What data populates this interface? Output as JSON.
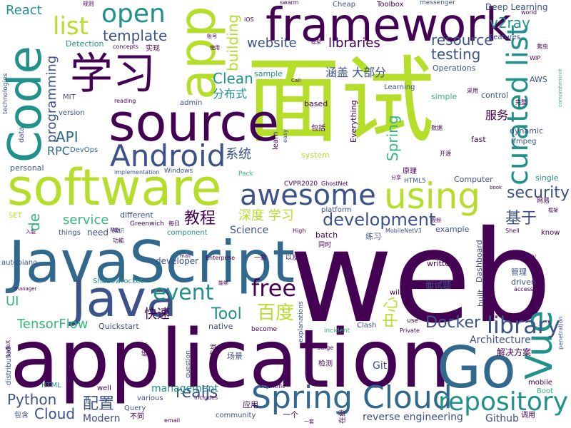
{
  "palette": {
    "dark_purple": "#440154",
    "indigo": "#3b528b",
    "blue": "#31688e",
    "teal": "#21918c",
    "green": "#35b779",
    "light_green": "#5ec962",
    "lime": "#b5de2b",
    "yellow": "#fde725"
  },
  "words": [
    "web",
    "application",
    "JavaScript",
    "面试",
    "software",
    "framework",
    "Java",
    "source",
    "Code",
    "app",
    "Go",
    "Spring Cloud",
    "学习",
    "awesome",
    "using",
    "Android",
    "repository",
    "curated list",
    "Vue",
    "open",
    "list",
    "free",
    "event",
    "library",
    "development",
    "百度",
    "security",
    "testing",
    "resource",
    "template",
    "website",
    "libraries",
    "React",
    "v2ray",
    "基于",
    "教程",
    "Docker",
    "Tool",
    "service",
    "realjs",
    "Python",
    "Cloud",
    "配置",
    "Clean",
    "building",
    "programming",
    "API",
    "RPC",
    "系统",
    "分布式",
    "Spring",
    "中心",
    "深度 学习",
    "服务",
    "快速",
    "TensorFlow",
    "UI",
    "management",
    "Modern",
    "Github",
    "reverse engineering",
    "解决方案",
    "Architecture",
    "Git",
    "Science",
    "涵盖 大部分",
    "Deep Learning",
    "Toolbox",
    "Cheap",
    "messenger",
    "Features",
    "AWS",
    "Operations",
    "Detection",
    "DevOps",
    "personal",
    "data",
    "MIT",
    "version",
    "admin",
    "sample",
    "Learning",
    "control",
    "simple",
    "dynamic",
    "fast",
    "ffmpeg",
    "Computer",
    "single",
    "CVPR2020",
    "GhostNet",
    "Pack",
    "HTML5",
    "原理",
    "system",
    "based",
    "包括",
    "Everything",
    "easy",
    "learn",
    "Windows",
    "implementation",
    "platform",
    "different",
    "Greenwich",
    "component",
    "things",
    "need",
    "知识",
    "example",
    "MobileNetV3",
    "batch",
    "练习",
    "High",
    "developer",
    "Shadowrocket",
    "autopiano",
    "manager",
    "Enterprise",
    "written",
    "Dashboard",
    "管理",
    "driven",
    "built",
    "面试题",
    "native",
    "Quickstart",
    "Clash",
    "incident",
    "Private",
    "use",
    "will",
    "Surge",
    "explanations",
    "场景",
    "检测",
    "question",
    "mobile",
    "Boot",
    "HTML",
    "well",
    "various",
    "Query",
    "email",
    "不同",
    "includes",
    "community",
    "应用",
    "一个",
    "scientific",
    "distributed",
    "LaTeX",
    "包含",
    "实战",
    "核心",
    "功能",
    "每日",
    "入能",
    "SET",
    "de",
    "technologies",
    "reading",
    "concepts",
    "实现",
    "规则",
    "swarm",
    "iOS",
    "world",
    "WIP",
    "comprehensive",
    "penetration",
    "access",
    "Study",
    "book",
    "网易",
    "框架",
    "Shell",
    "know",
    "视频",
    "同时",
    "一款",
    "以及",
    "能够",
    "become",
    "mail",
    "爬虫",
    "使用",
    "完整",
    "采用",
    "数据",
    "开源",
    "模型",
    "分享",
    "在线",
    "帮助",
    "账号",
    "Call",
    "一套",
    "调用"
  ]
}
